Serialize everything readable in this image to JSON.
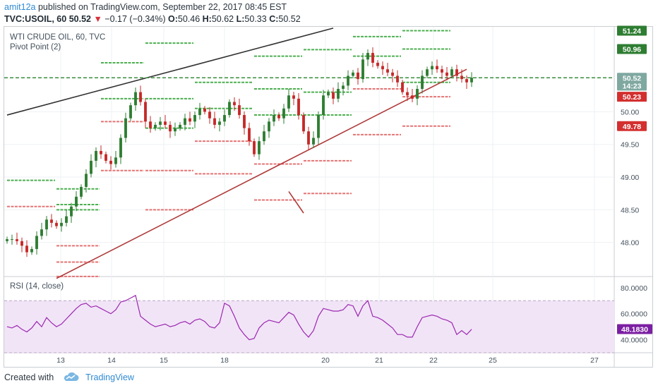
{
  "header": {
    "author": "amit12a",
    "published": "published on TradingView.com, September 22, 2017 08:45 EST"
  },
  "quote": {
    "symbol": "TVC:USOIL, 60",
    "last": "50.52",
    "arrow": "▼",
    "change": "−0.17 (−0.34%)",
    "open_label": "O:",
    "open": "50.46",
    "high_label": "H:",
    "high": "50.62",
    "low_label": "L:",
    "low": "50.33",
    "close_label": "C:",
    "close": "50.52"
  },
  "legend": {
    "title": "WTI CRUDE OIL, 60, TVC",
    "pivot": "Pivot Point (2)",
    "rsi": "RSI (14, close)"
  },
  "footer": {
    "created": "Created with",
    "brand": "TradingView"
  },
  "colors": {
    "up": "#26a69a",
    "down": "#ef5350",
    "up_body": "#2e7d32",
    "down_body": "#c62828",
    "pivot_green": "#4caf50",
    "pivot_red": "#e57373",
    "trend_black": "#333333",
    "trend_red": "#b03a3a",
    "rsi_line": "#9c27b0",
    "rsi_band": "#f1e4f7",
    "last_price_line": "#388e3c"
  },
  "chart_data": [
    {
      "type": "line",
      "name": "price",
      "y_axis_ticks": [
        "48.00",
        "48.50",
        "49.00",
        "49.50",
        "50.00"
      ],
      "ylim": [
        47.5,
        51.3
      ],
      "x_tick_labels": [
        "13",
        "14",
        "15",
        "18",
        "20",
        "21",
        "22",
        "25",
        "27"
      ],
      "tags": [
        {
          "label": "51.24",
          "value": 51.24,
          "color": "#2e7d32"
        },
        {
          "label": "50.96",
          "value": 50.96,
          "color": "#2e7d32"
        },
        {
          "label": "50.52",
          "value": 50.52,
          "color": "#7fa8a0"
        },
        {
          "label": "14:23",
          "value": 50.4,
          "color": "#7fa8a0"
        },
        {
          "label": "50.23",
          "value": 50.23,
          "color": "#d32f2f"
        },
        {
          "label": "49.78",
          "value": 49.78,
          "color": "#d32f2f"
        }
      ],
      "last_price": 50.52,
      "close_series": [
        48.05,
        48.05,
        48.02,
        47.95,
        47.85,
        47.9,
        48.1,
        48.2,
        48.35,
        48.3,
        48.25,
        48.3,
        48.4,
        48.55,
        48.7,
        48.85,
        49.05,
        49.25,
        49.4,
        49.35,
        49.25,
        49.2,
        49.3,
        49.6,
        49.9,
        50.1,
        50.3,
        50.15,
        49.85,
        49.75,
        49.8,
        49.85,
        49.8,
        49.7,
        49.75,
        49.8,
        49.9,
        49.85,
        49.95,
        50.05,
        50.0,
        49.9,
        49.8,
        49.85,
        49.95,
        50.15,
        50.1,
        49.95,
        49.75,
        49.55,
        49.35,
        49.55,
        49.7,
        49.85,
        49.95,
        49.9,
        50.05,
        50.25,
        50.2,
        49.95,
        49.7,
        49.5,
        49.6,
        49.95,
        50.25,
        50.3,
        50.2,
        50.35,
        50.4,
        50.55,
        50.6,
        50.5,
        50.8,
        50.9,
        50.75,
        50.7,
        50.65,
        50.6,
        50.55,
        50.45,
        50.3,
        50.25,
        50.2,
        50.35,
        50.55,
        50.65,
        50.7,
        50.65,
        50.6,
        50.55,
        50.65,
        50.55,
        50.5,
        50.45,
        50.52
      ],
      "pivot_levels": [
        {
          "start": 0,
          "end": 10,
          "values": [
            48.95,
            48.55
          ]
        },
        {
          "start": 10,
          "end": 19,
          "values": [
            48.82,
            48.58,
            48.5,
            47.95,
            47.7,
            47.48
          ]
        },
        {
          "start": 19,
          "end": 28,
          "values": [
            50.75,
            50.2,
            49.85,
            49.1
          ]
        },
        {
          "start": 28,
          "end": 38,
          "values": [
            51.05,
            50.2,
            49.75,
            49.1,
            48.5
          ]
        },
        {
          "start": 38,
          "end": 50,
          "values": [
            50.45,
            50.05,
            49.55,
            49.05
          ]
        },
        {
          "start": 50,
          "end": 60,
          "values": [
            50.85,
            50.35,
            49.95,
            49.2,
            48.65
          ]
        },
        {
          "start": 60,
          "end": 70,
          "values": [
            50.95,
            50.3,
            49.95,
            49.25,
            48.75
          ]
        },
        {
          "start": 70,
          "end": 80,
          "values": [
            51.15,
            50.85,
            50.35,
            49.65
          ]
        },
        {
          "start": 80,
          "end": 90,
          "values": [
            51.24,
            50.96,
            50.45,
            50.23,
            49.78
          ]
        }
      ],
      "trendlines": [
        {
          "color": "black",
          "from": [
            0,
            49.95
          ],
          "to": [
            66,
            51.28
          ]
        },
        {
          "color": "red",
          "from": [
            10,
            47.45
          ],
          "to": [
            93,
            50.65
          ]
        },
        {
          "color": "red",
          "from": [
            57,
            48.78
          ],
          "to": [
            60,
            48.45
          ]
        }
      ]
    },
    {
      "type": "line",
      "name": "rsi",
      "y_axis_ticks": [
        "40.0000",
        "60.0000",
        "80.0000"
      ],
      "tag": {
        "label": "48.1830",
        "value": 48.183
      },
      "ylim": [
        30,
        88
      ],
      "band": [
        30,
        70
      ],
      "mid": 50,
      "values": [
        50,
        49,
        51,
        48,
        46,
        49,
        54,
        50,
        57,
        53,
        50,
        52,
        56,
        60,
        64,
        67,
        68,
        65,
        66,
        64,
        62,
        60,
        63,
        69,
        70,
        72,
        74,
        58,
        55,
        52,
        50,
        51,
        52,
        50,
        51,
        53,
        54,
        52,
        55,
        56,
        54,
        50,
        49,
        53,
        68,
        66,
        58,
        49,
        44,
        40,
        41,
        49,
        53,
        55,
        54,
        53,
        57,
        61,
        59,
        52,
        46,
        42,
        47,
        58,
        64,
        63,
        62,
        62,
        63,
        67,
        66,
        58,
        66,
        70,
        58,
        57,
        55,
        52,
        49,
        44,
        44,
        42,
        42,
        50,
        57,
        58,
        59,
        58,
        56,
        55,
        53,
        44,
        47,
        44,
        48
      ]
    }
  ]
}
